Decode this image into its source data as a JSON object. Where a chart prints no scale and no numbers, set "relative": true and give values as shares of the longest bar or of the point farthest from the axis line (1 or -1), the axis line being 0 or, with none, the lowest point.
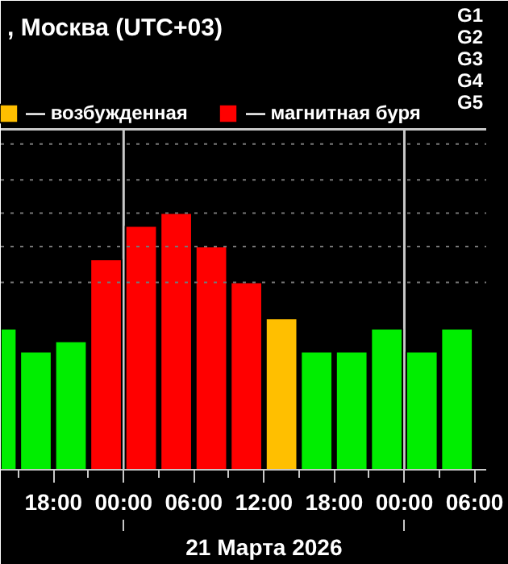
{
  "chart_data": {
    "type": "bar",
    "title": ", Москва (UTC+03)",
    "relative": true,
    "x": [
      "2026-03-20T13:30",
      "2026-03-20T16:30",
      "2026-03-20T19:30",
      "2026-03-20T22:30",
      "2026-03-21T01:30",
      "2026-03-21T04:30",
      "2026-03-21T07:30",
      "2026-03-21T10:30",
      "2026-03-21T13:30",
      "2026-03-21T16:30",
      "2026-03-21T19:30",
      "2026-03-21T22:30",
      "2026-03-22T01:30",
      "2026-03-22T04:30"
    ],
    "series": [
      {
        "color": "#00ee00",
        "values": [
          0.55,
          0.46,
          0.5,
          null,
          null,
          null,
          null,
          null,
          null,
          0.46,
          0.46,
          0.55,
          0.46,
          0.55
        ]
      },
      {
        "name": "— возбужденная",
        "color": "#ffbf00",
        "values": [
          null,
          null,
          null,
          null,
          null,
          null,
          null,
          null,
          0.59,
          null,
          null,
          null,
          null,
          null
        ]
      },
      {
        "name": "— магнитная буря",
        "color": "#ff0000",
        "values": [
          null,
          null,
          null,
          0.82,
          0.95,
          1,
          0.87,
          0.73,
          null,
          null,
          null,
          null,
          null,
          null
        ]
      }
    ],
    "xlim": [
      "2026-03-20T13:30",
      "2026-03-22T07:00"
    ],
    "xticks": [
      {
        "value": "2026-03-20T15:00",
        "label": null
      },
      {
        "value": "2026-03-20T18:00",
        "label": "18:00"
      },
      {
        "value": "2026-03-20T21:00",
        "label": null
      },
      {
        "value": "2026-03-21T00:00",
        "label": "00:00"
      },
      {
        "value": "2026-03-21T03:00",
        "label": null
      },
      {
        "value": "2026-03-21T06:00",
        "label": "06:00"
      },
      {
        "value": "2026-03-21T09:00",
        "label": null
      },
      {
        "value": "2026-03-21T12:00",
        "label": "12:00"
      },
      {
        "value": "2026-03-21T15:00",
        "label": null
      },
      {
        "value": "2026-03-21T18:00",
        "label": "18:00"
      },
      {
        "value": "2026-03-21T21:00",
        "label": null
      },
      {
        "value": "2026-03-22T00:00",
        "label": "00:00"
      },
      {
        "value": "2026-03-22T03:00",
        "label": null
      },
      {
        "value": "2026-03-22T06:00",
        "label": "06:00"
      }
    ],
    "ref_lines": [
      {
        "axis": "x",
        "value": "2026-03-21T00:00",
        "color": "#c8c8c8"
      },
      {
        "axis": "x",
        "value": "2026-03-22T00:00",
        "color": "#c8c8c8"
      },
      {
        "axis": "y",
        "value": 0.73,
        "color": "#777777",
        "line_style": "dotted"
      },
      {
        "axis": "y",
        "value": 0.87,
        "color": "#777777",
        "line_style": "dotted"
      },
      {
        "axis": "y",
        "value": 1.0,
        "color": "#777777",
        "line_style": "dotted"
      },
      {
        "axis": "y",
        "value": 1.13,
        "color": "#777777",
        "line_style": "dotted"
      },
      {
        "axis": "y",
        "value": 1.27,
        "color": "#777777",
        "line_style": "dotted"
      }
    ],
    "annotations": [
      "21 Марта 2026",
      "G1",
      "G2",
      "G3",
      "G4",
      "G5"
    ],
    "legend": "top"
  }
}
